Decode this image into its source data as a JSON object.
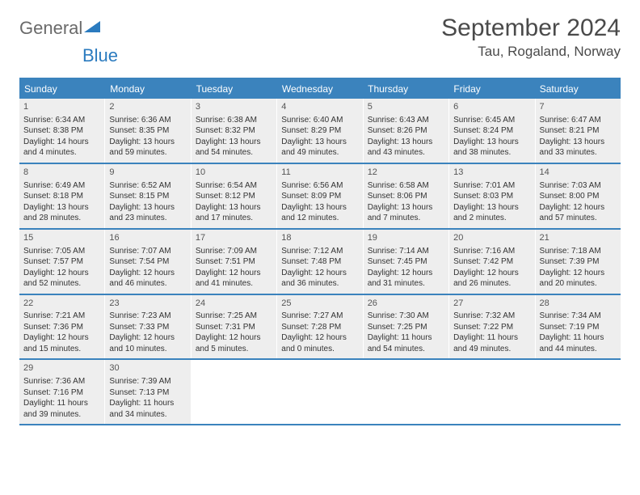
{
  "logo": {
    "word1": "General",
    "word2": "Blue"
  },
  "header": {
    "title": "September 2024",
    "location": "Tau, Rogaland, Norway"
  },
  "colors": {
    "brand": "#3b83bd",
    "cell_bg": "#eeeeee",
    "text": "#333333"
  },
  "dow": [
    "Sunday",
    "Monday",
    "Tuesday",
    "Wednesday",
    "Thursday",
    "Friday",
    "Saturday"
  ],
  "weeks": [
    [
      {
        "n": "1",
        "sr": "Sunrise: 6:34 AM",
        "ss": "Sunset: 8:38 PM",
        "d1": "Daylight: 14 hours",
        "d2": "and 4 minutes."
      },
      {
        "n": "2",
        "sr": "Sunrise: 6:36 AM",
        "ss": "Sunset: 8:35 PM",
        "d1": "Daylight: 13 hours",
        "d2": "and 59 minutes."
      },
      {
        "n": "3",
        "sr": "Sunrise: 6:38 AM",
        "ss": "Sunset: 8:32 PM",
        "d1": "Daylight: 13 hours",
        "d2": "and 54 minutes."
      },
      {
        "n": "4",
        "sr": "Sunrise: 6:40 AM",
        "ss": "Sunset: 8:29 PM",
        "d1": "Daylight: 13 hours",
        "d2": "and 49 minutes."
      },
      {
        "n": "5",
        "sr": "Sunrise: 6:43 AM",
        "ss": "Sunset: 8:26 PM",
        "d1": "Daylight: 13 hours",
        "d2": "and 43 minutes."
      },
      {
        "n": "6",
        "sr": "Sunrise: 6:45 AM",
        "ss": "Sunset: 8:24 PM",
        "d1": "Daylight: 13 hours",
        "d2": "and 38 minutes."
      },
      {
        "n": "7",
        "sr": "Sunrise: 6:47 AM",
        "ss": "Sunset: 8:21 PM",
        "d1": "Daylight: 13 hours",
        "d2": "and 33 minutes."
      }
    ],
    [
      {
        "n": "8",
        "sr": "Sunrise: 6:49 AM",
        "ss": "Sunset: 8:18 PM",
        "d1": "Daylight: 13 hours",
        "d2": "and 28 minutes."
      },
      {
        "n": "9",
        "sr": "Sunrise: 6:52 AM",
        "ss": "Sunset: 8:15 PM",
        "d1": "Daylight: 13 hours",
        "d2": "and 23 minutes."
      },
      {
        "n": "10",
        "sr": "Sunrise: 6:54 AM",
        "ss": "Sunset: 8:12 PM",
        "d1": "Daylight: 13 hours",
        "d2": "and 17 minutes."
      },
      {
        "n": "11",
        "sr": "Sunrise: 6:56 AM",
        "ss": "Sunset: 8:09 PM",
        "d1": "Daylight: 13 hours",
        "d2": "and 12 minutes."
      },
      {
        "n": "12",
        "sr": "Sunrise: 6:58 AM",
        "ss": "Sunset: 8:06 PM",
        "d1": "Daylight: 13 hours",
        "d2": "and 7 minutes."
      },
      {
        "n": "13",
        "sr": "Sunrise: 7:01 AM",
        "ss": "Sunset: 8:03 PM",
        "d1": "Daylight: 13 hours",
        "d2": "and 2 minutes."
      },
      {
        "n": "14",
        "sr": "Sunrise: 7:03 AM",
        "ss": "Sunset: 8:00 PM",
        "d1": "Daylight: 12 hours",
        "d2": "and 57 minutes."
      }
    ],
    [
      {
        "n": "15",
        "sr": "Sunrise: 7:05 AM",
        "ss": "Sunset: 7:57 PM",
        "d1": "Daylight: 12 hours",
        "d2": "and 52 minutes."
      },
      {
        "n": "16",
        "sr": "Sunrise: 7:07 AM",
        "ss": "Sunset: 7:54 PM",
        "d1": "Daylight: 12 hours",
        "d2": "and 46 minutes."
      },
      {
        "n": "17",
        "sr": "Sunrise: 7:09 AM",
        "ss": "Sunset: 7:51 PM",
        "d1": "Daylight: 12 hours",
        "d2": "and 41 minutes."
      },
      {
        "n": "18",
        "sr": "Sunrise: 7:12 AM",
        "ss": "Sunset: 7:48 PM",
        "d1": "Daylight: 12 hours",
        "d2": "and 36 minutes."
      },
      {
        "n": "19",
        "sr": "Sunrise: 7:14 AM",
        "ss": "Sunset: 7:45 PM",
        "d1": "Daylight: 12 hours",
        "d2": "and 31 minutes."
      },
      {
        "n": "20",
        "sr": "Sunrise: 7:16 AM",
        "ss": "Sunset: 7:42 PM",
        "d1": "Daylight: 12 hours",
        "d2": "and 26 minutes."
      },
      {
        "n": "21",
        "sr": "Sunrise: 7:18 AM",
        "ss": "Sunset: 7:39 PM",
        "d1": "Daylight: 12 hours",
        "d2": "and 20 minutes."
      }
    ],
    [
      {
        "n": "22",
        "sr": "Sunrise: 7:21 AM",
        "ss": "Sunset: 7:36 PM",
        "d1": "Daylight: 12 hours",
        "d2": "and 15 minutes."
      },
      {
        "n": "23",
        "sr": "Sunrise: 7:23 AM",
        "ss": "Sunset: 7:33 PM",
        "d1": "Daylight: 12 hours",
        "d2": "and 10 minutes."
      },
      {
        "n": "24",
        "sr": "Sunrise: 7:25 AM",
        "ss": "Sunset: 7:31 PM",
        "d1": "Daylight: 12 hours",
        "d2": "and 5 minutes."
      },
      {
        "n": "25",
        "sr": "Sunrise: 7:27 AM",
        "ss": "Sunset: 7:28 PM",
        "d1": "Daylight: 12 hours",
        "d2": "and 0 minutes."
      },
      {
        "n": "26",
        "sr": "Sunrise: 7:30 AM",
        "ss": "Sunset: 7:25 PM",
        "d1": "Daylight: 11 hours",
        "d2": "and 54 minutes."
      },
      {
        "n": "27",
        "sr": "Sunrise: 7:32 AM",
        "ss": "Sunset: 7:22 PM",
        "d1": "Daylight: 11 hours",
        "d2": "and 49 minutes."
      },
      {
        "n": "28",
        "sr": "Sunrise: 7:34 AM",
        "ss": "Sunset: 7:19 PM",
        "d1": "Daylight: 11 hours",
        "d2": "and 44 minutes."
      }
    ],
    [
      {
        "n": "29",
        "sr": "Sunrise: 7:36 AM",
        "ss": "Sunset: 7:16 PM",
        "d1": "Daylight: 11 hours",
        "d2": "and 39 minutes."
      },
      {
        "n": "30",
        "sr": "Sunrise: 7:39 AM",
        "ss": "Sunset: 7:13 PM",
        "d1": "Daylight: 11 hours",
        "d2": "and 34 minutes."
      },
      null,
      null,
      null,
      null,
      null
    ]
  ]
}
